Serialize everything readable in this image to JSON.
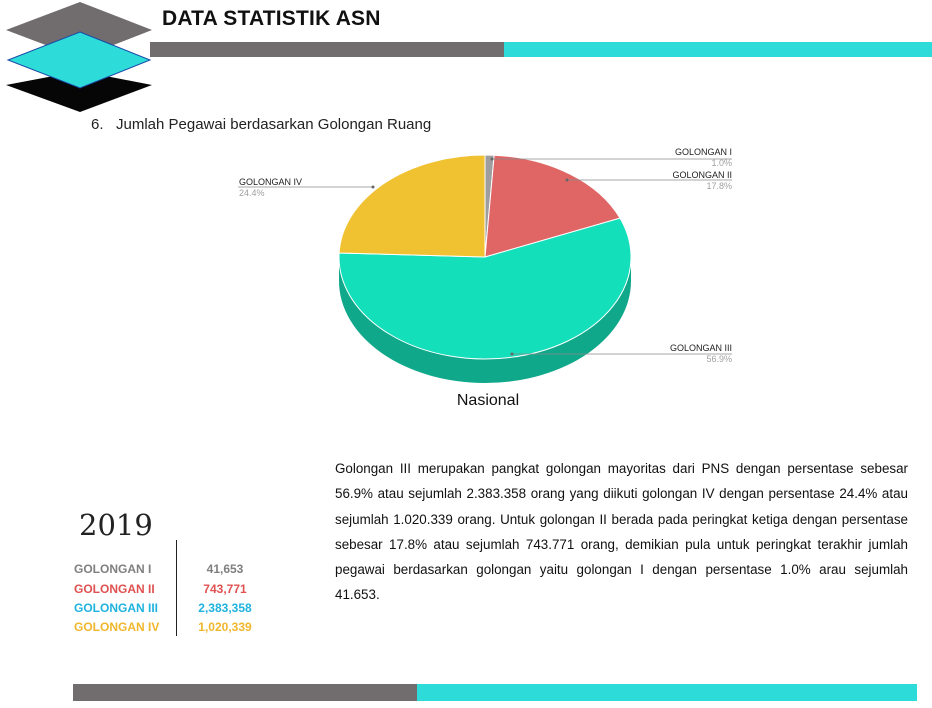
{
  "header": {
    "title": "DATA STATISTIK ASN"
  },
  "section": {
    "number": "6.",
    "title": "Jumlah Pegawai berdasarkan Golongan Ruang"
  },
  "chart_data": {
    "type": "pie",
    "title": "Nasional",
    "categories": [
      "GOLONGAN I",
      "GOLONGAN II",
      "GOLONGAN III",
      "GOLONGAN IV"
    ],
    "values": [
      1.0,
      17.8,
      56.9,
      24.4
    ],
    "value_labels": [
      "1.0%",
      "17.8%",
      "56.9%",
      "24.4%"
    ],
    "colors": [
      "#9e9e9e",
      "#e06666",
      "#13dfba",
      "#f0c232"
    ],
    "side_colors": [
      "#7a7a7a",
      "#b04c4c",
      "#10a88a",
      "#c69c22"
    ]
  },
  "table": {
    "year": "2019",
    "rows": [
      {
        "label": "GOLONGAN I",
        "value": "41,653",
        "color": "#7f7f7f"
      },
      {
        "label": "GOLONGAN II",
        "value": "743,771",
        "color": "#e05151"
      },
      {
        "label": "GOLONGAN III",
        "value": "2,383,358",
        "color": "#20b3dd"
      },
      {
        "label": "GOLONGAN IV",
        "value": "1,020,339",
        "color": "#f0b72c"
      }
    ]
  },
  "description": "Golongan III merupakan pangkat golongan mayoritas dari PNS dengan persentase sebesar 56.9% atau sejumlah 2.383.358 orang yang diikuti golongan IV dengan persentase 24.4% atau sejumlah 1.020.339 orang. Untuk golongan II berada pada peringkat ketiga dengan persentase sebesar 17.8% atau sejumlah 743.771 orang, demikian pula untuk peringkat terakhir jumlah pegawai berdasarkan golongan yaitu golongan I dengan persentase 1.0% arau sejumlah 41.653.",
  "theme": {
    "gray": "#716c6d",
    "cyan": "#2ddcd9"
  }
}
